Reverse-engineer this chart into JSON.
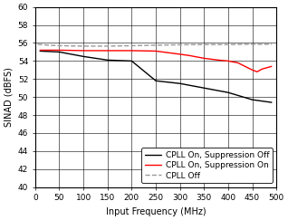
{
  "title": "",
  "xlabel": "Input Frequency (MHz)",
  "ylabel": "SINAD (dBFS)",
  "xlim": [
    0,
    500
  ],
  "ylim": [
    40,
    60
  ],
  "xticks": [
    0,
    50,
    100,
    150,
    200,
    250,
    300,
    350,
    400,
    450,
    500
  ],
  "yticks": [
    40,
    42,
    44,
    46,
    48,
    50,
    52,
    54,
    56,
    58,
    60
  ],
  "lines": {
    "cpll_on_supp_off": {
      "x": [
        10,
        50,
        100,
        150,
        200,
        250,
        300,
        350,
        400,
        450,
        490
      ],
      "y": [
        55.1,
        55.0,
        54.5,
        54.1,
        54.0,
        51.8,
        51.5,
        51.0,
        50.5,
        49.7,
        49.4
      ],
      "color": "#000000",
      "lw": 1.0,
      "ls": "-",
      "label": "CPLL On, Suppression Off"
    },
    "cpll_on_supp_on": {
      "x": [
        10,
        50,
        100,
        150,
        200,
        250,
        300,
        320,
        350,
        380,
        400,
        420,
        450,
        460,
        470,
        490
      ],
      "y": [
        55.2,
        55.2,
        55.15,
        55.15,
        55.15,
        55.1,
        54.75,
        54.6,
        54.3,
        54.1,
        54.0,
        53.8,
        53.0,
        52.8,
        53.1,
        53.4
      ],
      "color": "#ff0000",
      "lw": 1.0,
      "ls": "-",
      "label": "CPLL On, Suppression On"
    },
    "cpll_off": {
      "x": [
        5,
        30,
        50,
        100,
        150,
        200,
        250,
        300,
        350,
        400,
        430,
        460,
        490
      ],
      "y": [
        55.85,
        55.75,
        55.7,
        55.65,
        55.65,
        55.7,
        55.75,
        55.8,
        55.82,
        55.82,
        55.85,
        55.85,
        55.85
      ],
      "color": "#999999",
      "lw": 1.0,
      "ls": "--",
      "label": "CPLL Off"
    }
  },
  "legend_loc": "lower right",
  "grid_color": "#000000",
  "grid_lw": 0.4,
  "grid_alpha": 1.0,
  "bg_color": "#ffffff",
  "font_size": 6.5,
  "tick_fontsize": 6.5,
  "xlabel_fontsize": 7,
  "ylabel_fontsize": 7
}
